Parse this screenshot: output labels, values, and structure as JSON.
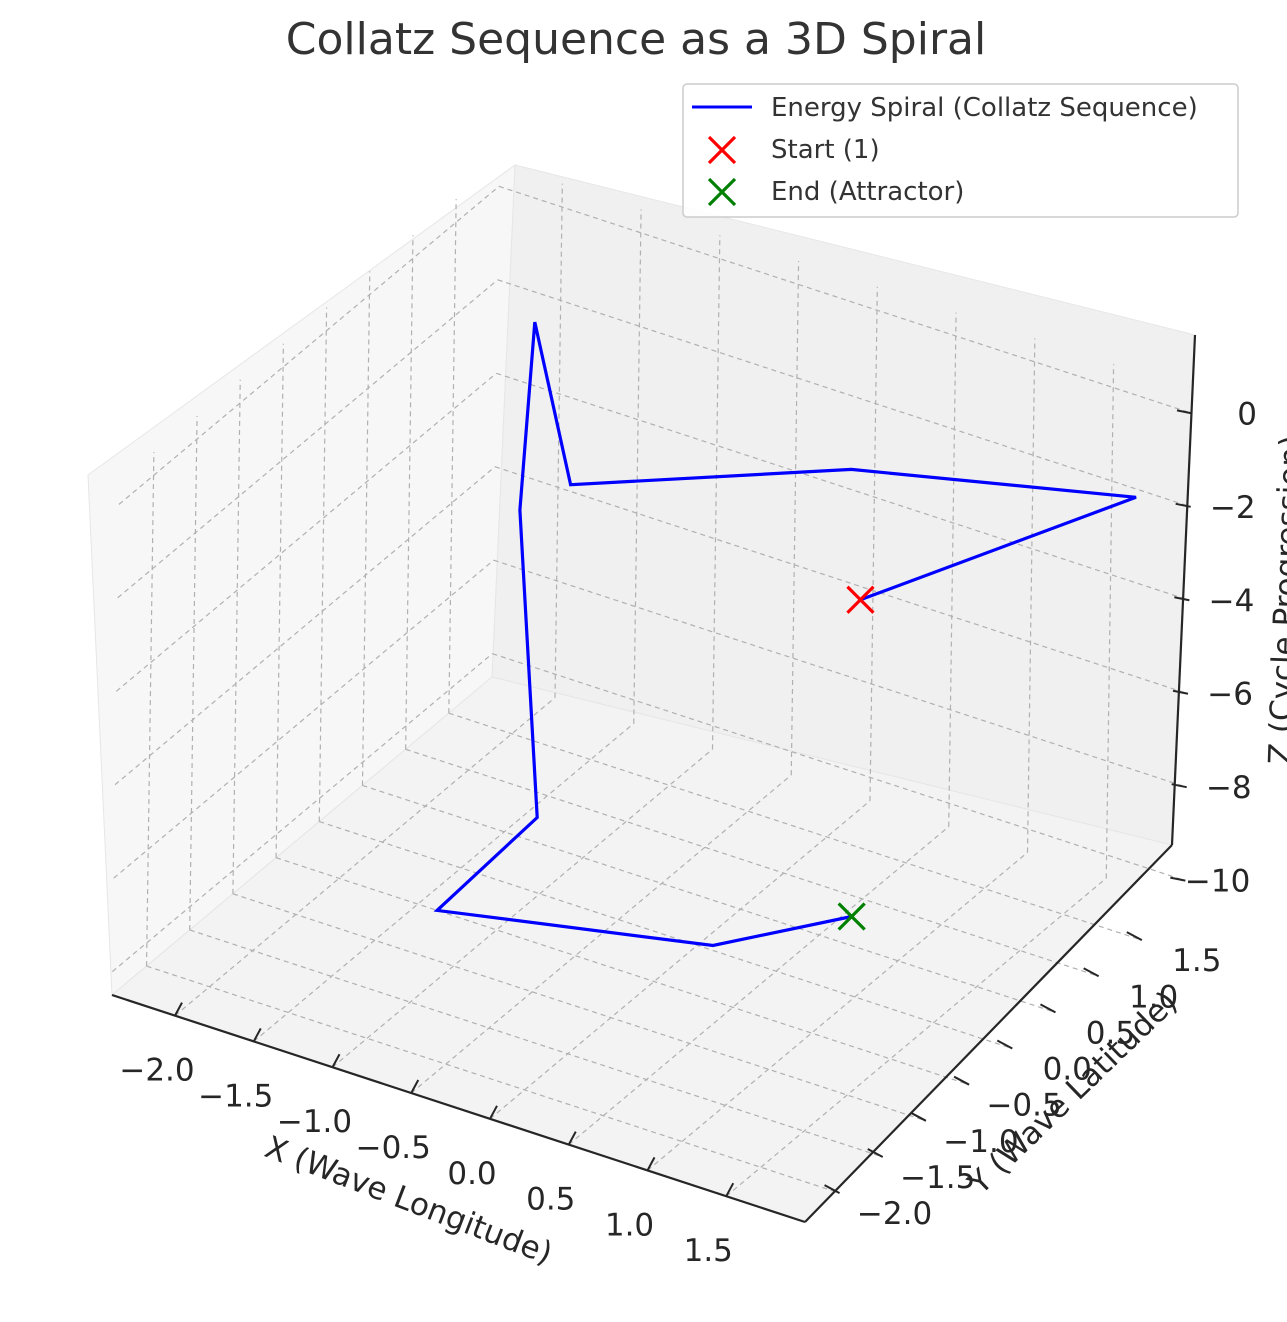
{
  "chart_data": {
    "type": "line",
    "projection": "3d",
    "title": "Collatz Sequence as a 3D Spiral",
    "xlabel": "X (Wave Longitude)",
    "ylabel": "Y (Wave Latitude)",
    "zlabel": "Z (Cycle Progression)",
    "x_ticks": [
      "−2.0",
      "−1.5",
      "−1.0",
      "−0.5",
      "0.0",
      "0.5",
      "1.0",
      "1.5"
    ],
    "y_ticks": [
      "−2.0",
      "−1.5",
      "−1.0",
      "−0.5",
      "0.0",
      "0.5",
      "1.0",
      "1.5"
    ],
    "z_ticks": [
      "0",
      "−2",
      "−4",
      "−6",
      "−8",
      "−10"
    ],
    "xlim": [
      -2.4,
      2.0
    ],
    "ylim": [
      -2.4,
      2.0
    ],
    "zlim": [
      -10.5,
      0.5
    ],
    "grid": true,
    "legend_position": "top-right",
    "series": [
      {
        "name": "Energy Spiral (Collatz Sequence)",
        "kind": "line",
        "color": "#0000ff",
        "points": [
          {
            "x": 1.0,
            "y": 0.0,
            "z": -2.0
          },
          {
            "x": 1.95,
            "y": 1.45,
            "z": -1.0
          },
          {
            "x": 0.5,
            "y": 0.8,
            "z": -1.0
          },
          {
            "x": -0.95,
            "y": 0.2,
            "z": -2.0
          },
          {
            "x": -2.0,
            "y": 1.7,
            "z": -2.0
          },
          {
            "x": -2.05,
            "y": 1.65,
            "z": -6.0
          },
          {
            "x": -1.05,
            "y": 0.05,
            "z": -9.0
          },
          {
            "x": -1.0,
            "y": -1.2,
            "z": -9.0
          },
          {
            "x": 0.45,
            "y": -0.65,
            "z": -9.0
          },
          {
            "x": 1.0,
            "y": -0.05,
            "z": -8.7
          }
        ]
      },
      {
        "name": "Start (1)",
        "kind": "marker",
        "marker": "x",
        "color": "#ff0000",
        "points": [
          {
            "x": 1.0,
            "y": 0.0,
            "z": -2.0
          }
        ]
      },
      {
        "name": "End (Attractor)",
        "kind": "marker",
        "marker": "x",
        "color": "#008000",
        "points": [
          {
            "x": 1.0,
            "y": -0.05,
            "z": -8.7
          }
        ]
      }
    ]
  }
}
